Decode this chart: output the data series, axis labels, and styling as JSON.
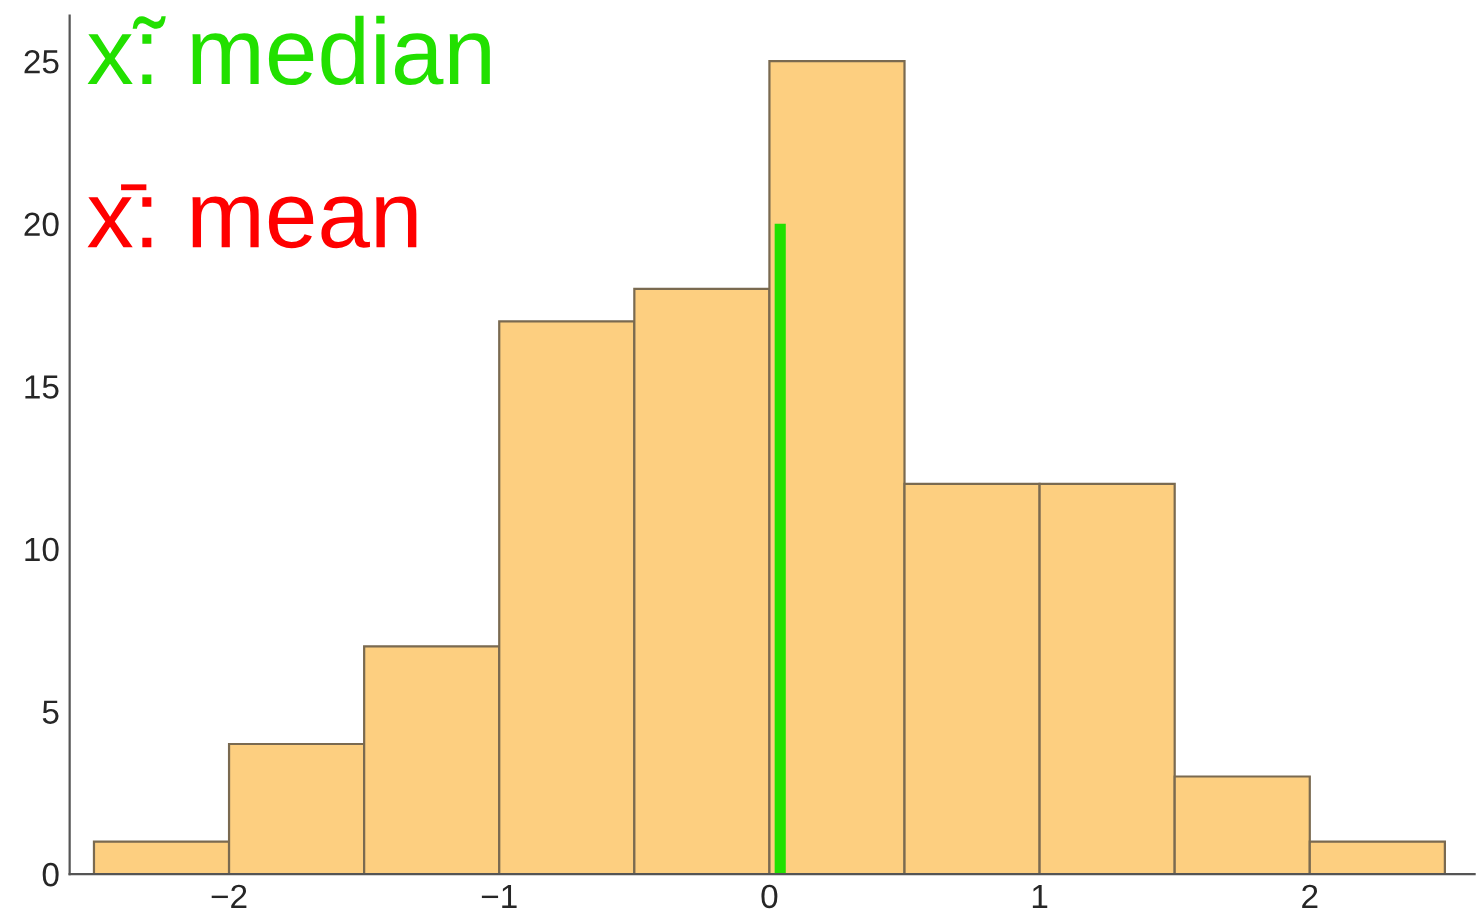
{
  "chart_data": {
    "type": "histogram",
    "bins": [
      -2.5,
      -2,
      -1.5,
      -1,
      -0.5,
      0,
      0.5,
      1,
      1.5,
      2,
      2.5
    ],
    "values": [
      1,
      4,
      7,
      17,
      18,
      25,
      12,
      12,
      3,
      1
    ],
    "color": "#fdcf80",
    "series": [
      {
        "type": "line",
        "name": "x̃: median",
        "color": "#22e000",
        "x": [
          0.04,
          0.04
        ],
        "values": [
          0,
          20
        ]
      }
    ],
    "annotations": [
      "x̄: mean"
    ],
    "xlim": [
      -2.59,
      2.61
    ],
    "ylim": [
      0,
      26.4
    ],
    "xticks": [
      {
        "value": -2,
        "label": "−2"
      },
      {
        "value": -1,
        "label": "−1"
      },
      0,
      1,
      2
    ],
    "yticks": [
      0,
      5,
      10,
      15,
      20,
      25
    ],
    "grid": false,
    "legend": false
  }
}
